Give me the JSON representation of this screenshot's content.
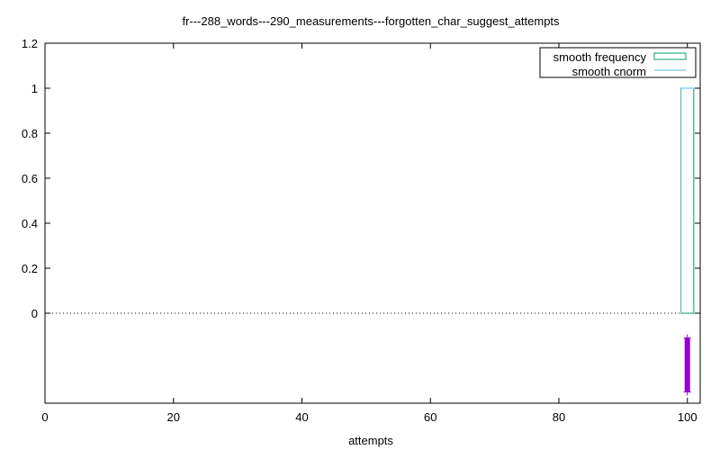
{
  "chart_data": {
    "type": "line",
    "title": "fr---288_words---290_measurements---forgotten_char_suggest_attempts",
    "xlabel": "attempts",
    "ylabel": "",
    "xlim": [
      0,
      102
    ],
    "ylim": [
      -0.4,
      1.2
    ],
    "x_ticks": [
      0,
      20,
      40,
      60,
      80,
      100
    ],
    "y_ticks": [
      0,
      0.2,
      0.4,
      0.6,
      0.8,
      1,
      1.2
    ],
    "zero_line": true,
    "grid": false,
    "legend_position": "top-right",
    "series": [
      {
        "name": "smooth frequency",
        "style": "histogram-step",
        "color": "#009e73",
        "bin_edges": [
          99,
          101
        ],
        "values": [
          1
        ]
      },
      {
        "name": "smooth cnorm",
        "style": "step",
        "color": "#56b4e9",
        "x": [
          99,
          99,
          101
        ],
        "y": [
          0,
          1,
          1
        ]
      }
    ],
    "points": {
      "color": "#9400d3",
      "marker": "+",
      "x": 100,
      "y_range": [
        -0.11,
        -0.35
      ]
    }
  }
}
